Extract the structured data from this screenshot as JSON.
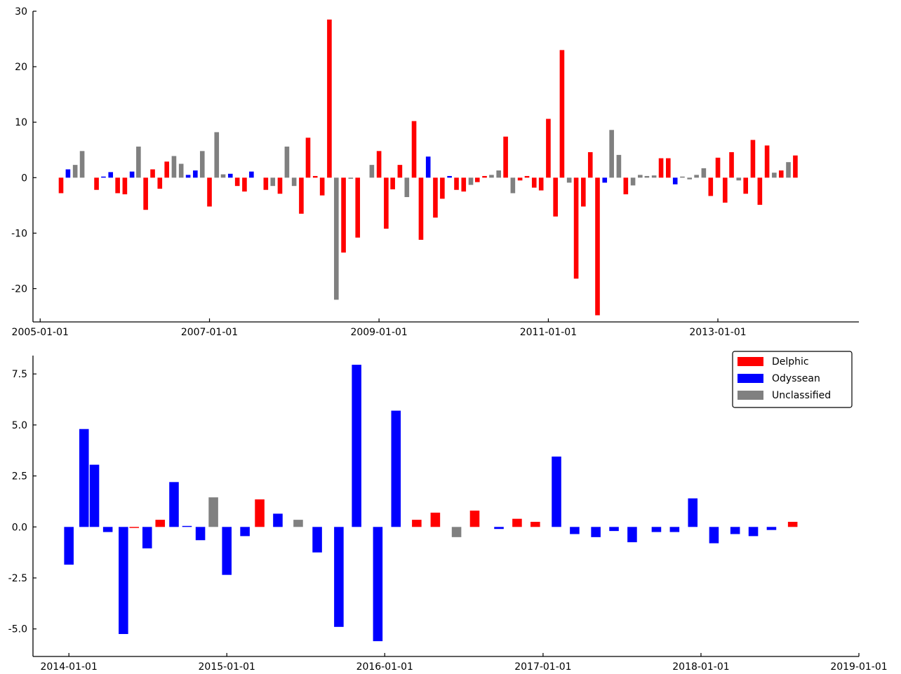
{
  "chart_data": [
    {
      "type": "bar",
      "title": "",
      "xlabel": "",
      "ylabel": "",
      "x_axis_type": "date",
      "xlim": [
        "2004-12-01",
        "2014-09-01"
      ],
      "ylim": [
        -26,
        30
      ],
      "yticks": [
        -20,
        -10,
        0,
        10,
        20,
        30
      ],
      "ytick_labels": [
        "-20",
        "-10",
        "0",
        "10",
        "20",
        "30"
      ],
      "xticks": [
        "2005-01-01",
        "2007-01-01",
        "2009-01-01",
        "2011-01-01",
        "2013-01-01"
      ],
      "xtick_labels": [
        "2005-01-01",
        "2007-01-01",
        "2009-01-01",
        "2011-01-01",
        "2013-01-01"
      ],
      "grid": false,
      "colors": {
        "Delphic": "#ff0000",
        "Odyssean": "#0000ff",
        "Unclassified": "#808080"
      },
      "points": [
        {
          "date": "2005-04-01",
          "value": -2.8,
          "class": "Delphic"
        },
        {
          "date": "2005-05-01",
          "value": 1.5,
          "class": "Odyssean"
        },
        {
          "date": "2005-06-01",
          "value": 2.3,
          "class": "Unclassified"
        },
        {
          "date": "2005-07-01",
          "value": 4.8,
          "class": "Unclassified"
        },
        {
          "date": "2005-09-01",
          "value": -2.2,
          "class": "Delphic"
        },
        {
          "date": "2005-10-01",
          "value": 0.2,
          "class": "Odyssean"
        },
        {
          "date": "2005-11-01",
          "value": 1.0,
          "class": "Odyssean"
        },
        {
          "date": "2005-12-01",
          "value": -2.8,
          "class": "Delphic"
        },
        {
          "date": "2006-01-01",
          "value": -3.0,
          "class": "Delphic"
        },
        {
          "date": "2006-02-01",
          "value": 1.1,
          "class": "Odyssean"
        },
        {
          "date": "2006-03-01",
          "value": 5.6,
          "class": "Unclassified"
        },
        {
          "date": "2006-04-01",
          "value": -5.8,
          "class": "Delphic"
        },
        {
          "date": "2006-05-01",
          "value": 1.5,
          "class": "Delphic"
        },
        {
          "date": "2006-06-01",
          "value": -2.0,
          "class": "Delphic"
        },
        {
          "date": "2006-07-01",
          "value": 2.9,
          "class": "Delphic"
        },
        {
          "date": "2006-08-01",
          "value": 3.9,
          "class": "Unclassified"
        },
        {
          "date": "2006-09-01",
          "value": 2.5,
          "class": "Unclassified"
        },
        {
          "date": "2006-10-01",
          "value": 0.5,
          "class": "Odyssean"
        },
        {
          "date": "2006-11-01",
          "value": 1.3,
          "class": "Odyssean"
        },
        {
          "date": "2006-12-01",
          "value": 4.8,
          "class": "Unclassified"
        },
        {
          "date": "2007-01-01",
          "value": -5.2,
          "class": "Delphic"
        },
        {
          "date": "2007-02-01",
          "value": 8.2,
          "class": "Unclassified"
        },
        {
          "date": "2007-03-01",
          "value": 0.6,
          "class": "Unclassified"
        },
        {
          "date": "2007-04-01",
          "value": 0.7,
          "class": "Odyssean"
        },
        {
          "date": "2007-05-01",
          "value": -1.5,
          "class": "Delphic"
        },
        {
          "date": "2007-06-01",
          "value": -2.5,
          "class": "Delphic"
        },
        {
          "date": "2007-07-01",
          "value": 1.1,
          "class": "Odyssean"
        },
        {
          "date": "2007-09-01",
          "value": -2.2,
          "class": "Delphic"
        },
        {
          "date": "2007-10-01",
          "value": -1.5,
          "class": "Unclassified"
        },
        {
          "date": "2007-11-01",
          "value": -2.9,
          "class": "Delphic"
        },
        {
          "date": "2007-12-01",
          "value": 5.6,
          "class": "Unclassified"
        },
        {
          "date": "2008-01-01",
          "value": -1.5,
          "class": "Unclassified"
        },
        {
          "date": "2008-02-01",
          "value": -6.5,
          "class": "Delphic"
        },
        {
          "date": "2008-03-01",
          "value": 7.2,
          "class": "Delphic"
        },
        {
          "date": "2008-04-01",
          "value": 0.3,
          "class": "Delphic"
        },
        {
          "date": "2008-05-01",
          "value": -3.2,
          "class": "Delphic"
        },
        {
          "date": "2008-06-01",
          "value": 28.5,
          "class": "Delphic"
        },
        {
          "date": "2008-07-01",
          "value": -22.0,
          "class": "Unclassified"
        },
        {
          "date": "2008-08-01",
          "value": -13.5,
          "class": "Delphic"
        },
        {
          "date": "2008-09-01",
          "value": -0.2,
          "class": "Unclassified"
        },
        {
          "date": "2008-10-01",
          "value": -10.8,
          "class": "Delphic"
        },
        {
          "date": "2008-12-01",
          "value": 2.3,
          "class": "Unclassified"
        },
        {
          "date": "2009-01-01",
          "value": 4.8,
          "class": "Delphic"
        },
        {
          "date": "2009-02-01",
          "value": -9.2,
          "class": "Delphic"
        },
        {
          "date": "2009-03-01",
          "value": -2.1,
          "class": "Delphic"
        },
        {
          "date": "2009-04-01",
          "value": 2.3,
          "class": "Delphic"
        },
        {
          "date": "2009-05-01",
          "value": -3.5,
          "class": "Unclassified"
        },
        {
          "date": "2009-06-01",
          "value": 10.2,
          "class": "Delphic"
        },
        {
          "date": "2009-07-01",
          "value": -11.2,
          "class": "Delphic"
        },
        {
          "date": "2009-08-01",
          "value": 3.8,
          "class": "Odyssean"
        },
        {
          "date": "2009-09-01",
          "value": -7.2,
          "class": "Delphic"
        },
        {
          "date": "2009-10-01",
          "value": -3.8,
          "class": "Delphic"
        },
        {
          "date": "2009-11-01",
          "value": 0.3,
          "class": "Odyssean"
        },
        {
          "date": "2009-12-01",
          "value": -2.2,
          "class": "Delphic"
        },
        {
          "date": "2010-01-01",
          "value": -2.5,
          "class": "Delphic"
        },
        {
          "date": "2010-02-01",
          "value": -1.3,
          "class": "Unclassified"
        },
        {
          "date": "2010-03-01",
          "value": -0.8,
          "class": "Delphic"
        },
        {
          "date": "2010-04-01",
          "value": 0.3,
          "class": "Delphic"
        },
        {
          "date": "2010-05-01",
          "value": 0.5,
          "class": "Unclassified"
        },
        {
          "date": "2010-06-01",
          "value": 1.3,
          "class": "Unclassified"
        },
        {
          "date": "2010-07-01",
          "value": 7.4,
          "class": "Delphic"
        },
        {
          "date": "2010-08-01",
          "value": -2.8,
          "class": "Unclassified"
        },
        {
          "date": "2010-09-01",
          "value": -0.5,
          "class": "Delphic"
        },
        {
          "date": "2010-10-01",
          "value": 0.3,
          "class": "Delphic"
        },
        {
          "date": "2010-11-01",
          "value": -1.8,
          "class": "Delphic"
        },
        {
          "date": "2010-12-01",
          "value": -2.3,
          "class": "Delphic"
        },
        {
          "date": "2011-01-01",
          "value": 10.6,
          "class": "Delphic"
        },
        {
          "date": "2011-02-01",
          "value": -7.0,
          "class": "Delphic"
        },
        {
          "date": "2011-03-01",
          "value": 23.0,
          "class": "Delphic"
        },
        {
          "date": "2011-04-01",
          "value": -0.9,
          "class": "Unclassified"
        },
        {
          "date": "2011-05-01",
          "value": -18.2,
          "class": "Delphic"
        },
        {
          "date": "2011-06-01",
          "value": -5.2,
          "class": "Delphic"
        },
        {
          "date": "2011-07-01",
          "value": 4.6,
          "class": "Delphic"
        },
        {
          "date": "2011-08-01",
          "value": -24.8,
          "class": "Delphic"
        },
        {
          "date": "2011-09-01",
          "value": -0.9,
          "class": "Odyssean"
        },
        {
          "date": "2011-10-01",
          "value": 8.6,
          "class": "Unclassified"
        },
        {
          "date": "2011-11-01",
          "value": 4.1,
          "class": "Unclassified"
        },
        {
          "date": "2011-12-01",
          "value": -3.0,
          "class": "Delphic"
        },
        {
          "date": "2012-01-01",
          "value": -1.4,
          "class": "Unclassified"
        },
        {
          "date": "2012-02-01",
          "value": 0.5,
          "class": "Unclassified"
        },
        {
          "date": "2012-03-01",
          "value": 0.3,
          "class": "Unclassified"
        },
        {
          "date": "2012-04-01",
          "value": 0.4,
          "class": "Unclassified"
        },
        {
          "date": "2012-05-01",
          "value": 3.5,
          "class": "Delphic"
        },
        {
          "date": "2012-06-01",
          "value": 3.5,
          "class": "Delphic"
        },
        {
          "date": "2012-07-01",
          "value": -1.2,
          "class": "Odyssean"
        },
        {
          "date": "2012-08-01",
          "value": 0.2,
          "class": "Unclassified"
        },
        {
          "date": "2012-09-01",
          "value": -0.3,
          "class": "Unclassified"
        },
        {
          "date": "2012-10-01",
          "value": 0.5,
          "class": "Unclassified"
        },
        {
          "date": "2012-11-01",
          "value": 1.7,
          "class": "Unclassified"
        },
        {
          "date": "2012-12-01",
          "value": -3.3,
          "class": "Delphic"
        },
        {
          "date": "2013-01-01",
          "value": 3.6,
          "class": "Delphic"
        },
        {
          "date": "2013-02-01",
          "value": -4.5,
          "class": "Delphic"
        },
        {
          "date": "2013-03-01",
          "value": 4.6,
          "class": "Delphic"
        },
        {
          "date": "2013-04-01",
          "value": -0.5,
          "class": "Unclassified"
        },
        {
          "date": "2013-05-01",
          "value": -2.9,
          "class": "Delphic"
        },
        {
          "date": "2013-06-01",
          "value": 6.8,
          "class": "Delphic"
        },
        {
          "date": "2013-07-01",
          "value": -4.9,
          "class": "Delphic"
        },
        {
          "date": "2013-08-01",
          "value": 5.8,
          "class": "Delphic"
        },
        {
          "date": "2013-09-01",
          "value": 0.9,
          "class": "Unclassified"
        },
        {
          "date": "2013-10-01",
          "value": 1.3,
          "class": "Delphic"
        },
        {
          "date": "2013-11-01",
          "value": 2.8,
          "class": "Unclassified"
        },
        {
          "date": "2013-12-01",
          "value": 4.0,
          "class": "Delphic"
        }
      ]
    },
    {
      "type": "bar",
      "title": "",
      "xlabel": "",
      "ylabel": "",
      "x_axis_type": "date",
      "xlim": [
        "2013-10-10",
        "2019-01-01"
      ],
      "ylim": [
        -6.35,
        8.4
      ],
      "yticks": [
        -5.0,
        -2.5,
        0.0,
        2.5,
        5.0,
        7.5
      ],
      "ytick_labels": [
        "-5.0",
        "-2.5",
        "0.0",
        "2.5",
        "5.0",
        "7.5"
      ],
      "xticks": [
        "2014-01-01",
        "2015-01-01",
        "2016-01-01",
        "2017-01-01",
        "2018-01-01",
        "2019-01-01"
      ],
      "xtick_labels": [
        "2014-01-01",
        "2015-01-01",
        "2016-01-01",
        "2017-01-01",
        "2018-01-01",
        "2019-01-01"
      ],
      "grid": false,
      "legend": {
        "placement": "top-right",
        "entries": [
          {
            "label": "Delphic",
            "color": "#ff0000"
          },
          {
            "label": "Odyssean",
            "color": "#0000ff"
          },
          {
            "label": "Unclassified",
            "color": "#808080"
          }
        ]
      },
      "colors": {
        "Delphic": "#ff0000",
        "Odyssean": "#0000ff",
        "Unclassified": "#808080"
      },
      "points": [
        {
          "date": "2014-01-01",
          "value": -1.85,
          "class": "Odyssean"
        },
        {
          "date": "2014-02-05",
          "value": 4.8,
          "class": "Odyssean"
        },
        {
          "date": "2014-03-01",
          "value": 3.05,
          "class": "Odyssean"
        },
        {
          "date": "2014-04-01",
          "value": -0.25,
          "class": "Odyssean"
        },
        {
          "date": "2014-05-07",
          "value": -5.25,
          "class": "Odyssean"
        },
        {
          "date": "2014-06-01",
          "value": -0.05,
          "class": "Delphic"
        },
        {
          "date": "2014-07-01",
          "value": -1.05,
          "class": "Odyssean"
        },
        {
          "date": "2014-07-31",
          "value": 0.35,
          "class": "Delphic"
        },
        {
          "date": "2014-09-01",
          "value": 2.2,
          "class": "Odyssean"
        },
        {
          "date": "2014-10-01",
          "value": 0.05,
          "class": "Odyssean"
        },
        {
          "date": "2014-11-01",
          "value": -0.65,
          "class": "Odyssean"
        },
        {
          "date": "2014-12-01",
          "value": 1.45,
          "class": "Unclassified"
        },
        {
          "date": "2015-01-01",
          "value": -2.35,
          "class": "Odyssean"
        },
        {
          "date": "2015-02-12",
          "value": -0.45,
          "class": "Odyssean"
        },
        {
          "date": "2015-03-18",
          "value": 1.35,
          "class": "Delphic"
        },
        {
          "date": "2015-04-29",
          "value": 0.65,
          "class": "Odyssean"
        },
        {
          "date": "2015-06-15",
          "value": 0.35,
          "class": "Unclassified"
        },
        {
          "date": "2015-07-29",
          "value": -1.25,
          "class": "Odyssean"
        },
        {
          "date": "2015-09-17",
          "value": -4.9,
          "class": "Odyssean"
        },
        {
          "date": "2015-10-28",
          "value": 7.95,
          "class": "Odyssean"
        },
        {
          "date": "2015-12-16",
          "value": -5.6,
          "class": "Odyssean"
        },
        {
          "date": "2016-01-27",
          "value": 5.7,
          "class": "Odyssean"
        },
        {
          "date": "2016-03-15",
          "value": 0.35,
          "class": "Delphic"
        },
        {
          "date": "2016-04-27",
          "value": 0.7,
          "class": "Delphic"
        },
        {
          "date": "2016-06-15",
          "value": -0.5,
          "class": "Unclassified"
        },
        {
          "date": "2016-07-27",
          "value": 0.8,
          "class": "Delphic"
        },
        {
          "date": "2016-09-21",
          "value": -0.1,
          "class": "Odyssean"
        },
        {
          "date": "2016-11-02",
          "value": 0.4,
          "class": "Delphic"
        },
        {
          "date": "2016-12-14",
          "value": 0.25,
          "class": "Delphic"
        },
        {
          "date": "2017-02-01",
          "value": 3.45,
          "class": "Odyssean"
        },
        {
          "date": "2017-03-15",
          "value": -0.35,
          "class": "Odyssean"
        },
        {
          "date": "2017-05-03",
          "value": -0.5,
          "class": "Odyssean"
        },
        {
          "date": "2017-06-14",
          "value": -0.2,
          "class": "Odyssean"
        },
        {
          "date": "2017-07-26",
          "value": -0.75,
          "class": "Odyssean"
        },
        {
          "date": "2017-09-20",
          "value": -0.25,
          "class": "Odyssean"
        },
        {
          "date": "2017-11-01",
          "value": -0.25,
          "class": "Odyssean"
        },
        {
          "date": "2017-12-13",
          "value": 1.4,
          "class": "Odyssean"
        },
        {
          "date": "2018-01-31",
          "value": -0.8,
          "class": "Odyssean"
        },
        {
          "date": "2018-03-21",
          "value": -0.35,
          "class": "Odyssean"
        },
        {
          "date": "2018-05-02",
          "value": -0.45,
          "class": "Odyssean"
        },
        {
          "date": "2018-06-13",
          "value": -0.15,
          "class": "Odyssean"
        },
        {
          "date": "2018-08-01",
          "value": 0.25,
          "class": "Delphic"
        }
      ]
    }
  ]
}
